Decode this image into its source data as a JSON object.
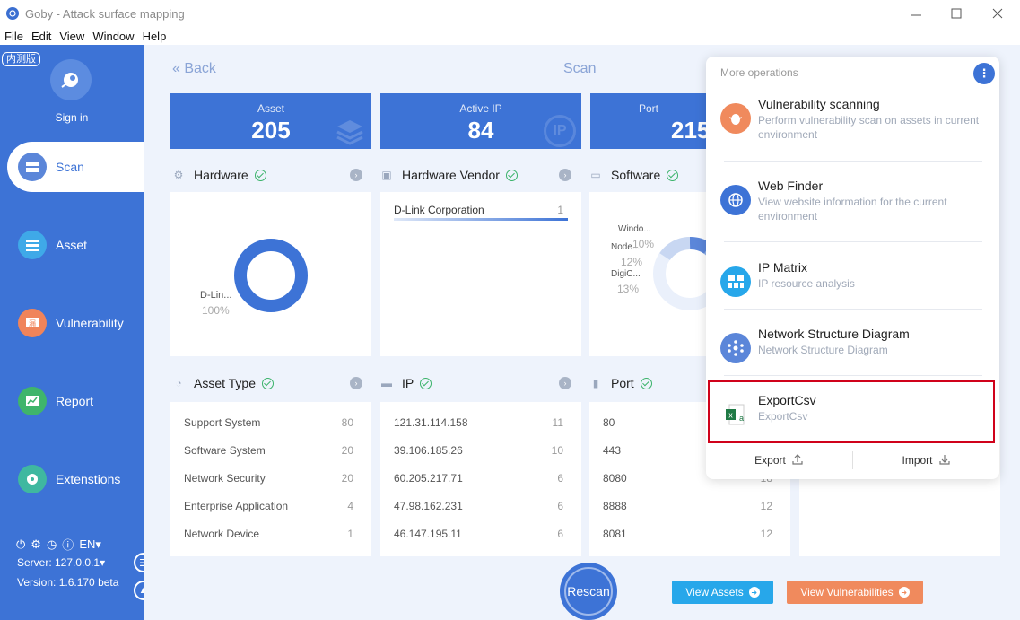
{
  "window": {
    "title": "Goby - Attack surface mapping",
    "minimize": "—",
    "maximize": "☐",
    "close": "✕"
  },
  "menu": [
    "File",
    "Edit",
    "View",
    "Window",
    "Help"
  ],
  "sidebar": {
    "beta_badge": "内测版",
    "signin": "Sign in",
    "items": [
      {
        "label": "Scan",
        "icon": "scan-icon",
        "color": "#5b86d9",
        "active": true
      },
      {
        "label": "Asset",
        "icon": "asset-icon",
        "color": "#3fa9e8"
      },
      {
        "label": "Vulnerability",
        "icon": "vulnerability-icon",
        "color": "#f0845a"
      },
      {
        "label": "Report",
        "icon": "report-icon",
        "color": "#3fb56b"
      },
      {
        "label": "Extenstions",
        "icon": "extensions-icon",
        "color": "#3fb8a0"
      }
    ],
    "lang": "EN",
    "server": "Server: 127.0.0.1",
    "version": "Version: 1.6.170 beta"
  },
  "main": {
    "back": "« Back",
    "title": "Scan",
    "stats": [
      {
        "label": "Asset",
        "value": "205"
      },
      {
        "label": "Active IP",
        "value": "84",
        "bg": "IP"
      },
      {
        "label": "Port",
        "value": "215"
      }
    ],
    "panels": {
      "hardware": {
        "title": "Hardware",
        "donut": [
          {
            "name": "D-Lin...",
            "pct": "100%",
            "share": 1.0
          }
        ]
      },
      "hardware_vendor": {
        "title": "Hardware Vendor",
        "rows": [
          {
            "name": "D-Link Corporation",
            "count": "1"
          }
        ]
      },
      "software": {
        "title": "Software",
        "slices": [
          {
            "name": "Windo...",
            "pct": "10%",
            "share": 0.1
          },
          {
            "name": "Node...",
            "pct": "12%",
            "share": 0.12
          },
          {
            "name": "DigiC...",
            "pct": "13%",
            "share": 0.13
          }
        ]
      },
      "asset_type": {
        "title": "Asset Type",
        "rows": [
          {
            "name": "Support System",
            "count": "80"
          },
          {
            "name": "Software System",
            "count": "20"
          },
          {
            "name": "Network Security",
            "count": "20"
          },
          {
            "name": "Enterprise Application",
            "count": "4"
          },
          {
            "name": "Network Device",
            "count": "1"
          }
        ]
      },
      "ip": {
        "title": "IP",
        "rows": [
          {
            "name": "121.31.114.158",
            "count": "11"
          },
          {
            "name": "39.106.185.26",
            "count": "10"
          },
          {
            "name": "60.205.217.71",
            "count": "6"
          },
          {
            "name": "47.98.162.231",
            "count": "6"
          },
          {
            "name": "46.147.195.11",
            "count": "6"
          }
        ]
      },
      "port": {
        "title": "Port",
        "rows": [
          {
            "name": "80",
            "count": ""
          },
          {
            "name": "443",
            "count": ""
          },
          {
            "name": "8080",
            "count": "18"
          },
          {
            "name": "8888",
            "count": "12"
          },
          {
            "name": "8081",
            "count": "12"
          }
        ]
      }
    },
    "rescan": "Rescan",
    "view_assets": "View Assets",
    "view_vulns": "View Vulnerabilities"
  },
  "popup": {
    "title": "More operations",
    "items": [
      {
        "title": "Vulnerability scanning",
        "desc": "Perform vulnerability scan on assets in current environment",
        "color": "#f08a5d",
        "icon": "bug-icon"
      },
      {
        "title": "Web Finder",
        "desc": "View website information for the current environment",
        "color": "#3d73d6",
        "icon": "globe-icon"
      },
      {
        "title": "IP Matrix",
        "desc": "IP resource analysis",
        "color": "#27a7ea",
        "icon": "matrix-icon"
      },
      {
        "title": "Network Structure Diagram",
        "desc": "Network Structure Diagram",
        "color": "#5b86d9",
        "icon": "network-icon"
      },
      {
        "title": "ExportCsv",
        "desc": "ExportCsv",
        "color": "#ffffff",
        "icon": "excel-icon"
      }
    ],
    "export": "Export",
    "import": "Import"
  }
}
